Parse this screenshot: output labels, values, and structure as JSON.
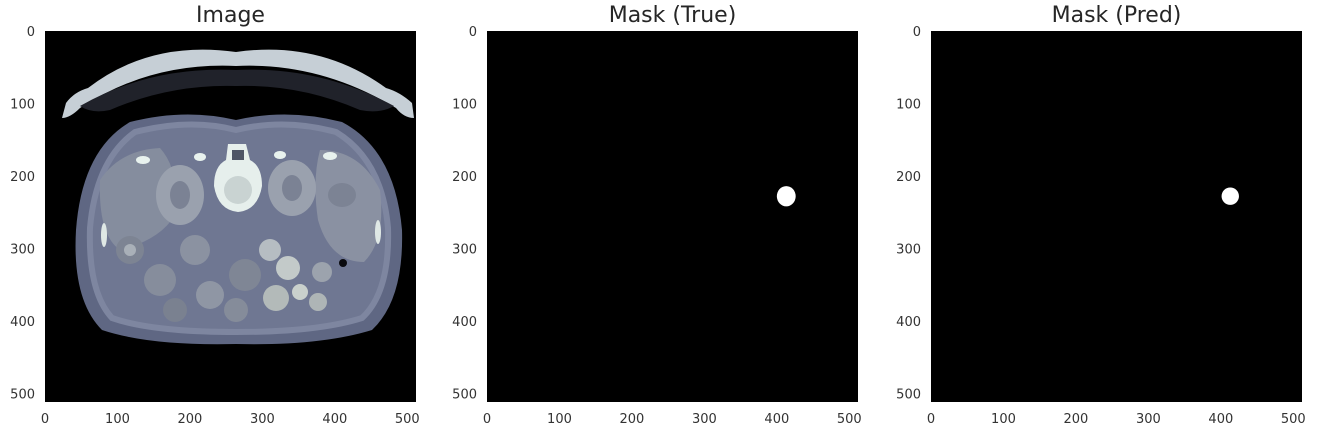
{
  "chart_data": [
    {
      "type": "heatmap",
      "title": "Image",
      "content": "axial abdominal CT slice (bone colormap)",
      "xlim": [
        0,
        512
      ],
      "ylim": [
        512,
        0
      ],
      "xticks": [
        0,
        100,
        200,
        300,
        400,
        500
      ],
      "yticks": [
        0,
        100,
        200,
        300,
        400,
        500
      ],
      "grid": false
    },
    {
      "type": "heatmap",
      "title": "Mask (True)",
      "content": "binary mask",
      "xlim": [
        0,
        512
      ],
      "ylim": [
        512,
        0
      ],
      "xticks": [
        0,
        100,
        200,
        300,
        400,
        500
      ],
      "yticks": [
        0,
        100,
        200,
        300,
        400,
        500
      ],
      "grid": false,
      "blob": {
        "cx": 413,
        "cy": 228,
        "rx": 13,
        "ry": 14
      }
    },
    {
      "type": "heatmap",
      "title": "Mask (Pred)",
      "content": "binary mask",
      "xlim": [
        0,
        512
      ],
      "ylim": [
        512,
        0
      ],
      "xticks": [
        0,
        100,
        200,
        300,
        400,
        500
      ],
      "yticks": [
        0,
        100,
        200,
        300,
        400,
        500
      ],
      "grid": false,
      "blob": {
        "cx": 413,
        "cy": 228,
        "rx": 12,
        "ry": 12
      }
    }
  ],
  "colors": {
    "background": "#ffffff",
    "mask_background": "#000000",
    "mask_foreground": "#ffffff",
    "ct_body": "#6e7591",
    "ct_dark": "#1a1a22",
    "ct_bone": "#e8f2ee",
    "ct_organ": "#8c94a5"
  }
}
